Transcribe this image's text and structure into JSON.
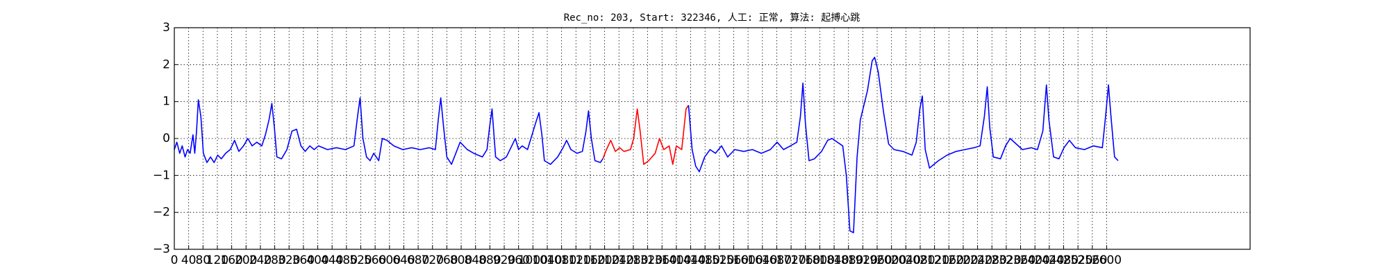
{
  "chart_data": {
    "type": "line",
    "title": "Rec_no: 203, Start: 322346, 人工: 正常, 算法: 起搏心跳",
    "xlim": [
      0,
      3000
    ],
    "ylim": [
      -3,
      3
    ],
    "xticks": [
      0,
      40,
      80,
      120,
      160,
      200,
      240,
      280,
      320,
      360,
      400,
      440,
      480,
      520,
      560,
      600,
      640,
      680,
      720,
      760,
      800,
      840,
      880,
      920,
      960,
      1000,
      1040,
      1080,
      1120,
      1160,
      1200,
      1240,
      1280,
      1320,
      1360,
      1400,
      1440,
      1480,
      1520,
      1560,
      1600,
      1640,
      1680,
      1720,
      1760,
      1800,
      1840,
      1880,
      1920,
      1960,
      2000,
      2040,
      2080,
      2120,
      2160,
      2200,
      2240,
      2280,
      2320,
      2360,
      2400,
      2440,
      2480,
      2520,
      2560,
      2600
    ],
    "yticks": [
      {
        "value": -3,
        "label": "−3"
      },
      {
        "value": -2,
        "label": "−2"
      },
      {
        "value": -1,
        "label": "−1"
      },
      0,
      1,
      2,
      3
    ],
    "grid": true,
    "series": [
      {
        "color": "#0000ff",
        "x": [
          0,
          7,
          15,
          22,
          30,
          37,
          44,
          52,
          57,
          62,
          67,
          74,
          81,
          91,
          101,
          111,
          121,
          131,
          143,
          156,
          168,
          180,
          193,
          205,
          217,
          230,
          244,
          254,
          264,
          272,
          279,
          286,
          299,
          314,
          328,
          341,
          353,
          365,
          378,
          390,
          402,
          427,
          452,
          477,
          501,
          511,
          518,
          526,
          536,
          546,
          556,
          570,
          580,
          593,
          612,
          637,
          662,
          686,
          711,
          728,
          736,
          743,
          751,
          760,
          773,
          785,
          797,
          817,
          835,
          859,
          872,
          879,
          886,
          896,
          909,
          926,
          941,
          951,
          960,
          970,
          985,
          1007,
          1017,
          1025,
          1032,
          1049,
          1069,
          1084,
          1094,
          1106,
          1123,
          1138,
          1148,
          1155,
          1163,
          1173,
          1188,
          1195
        ],
        "values": [
          -0.3,
          -0.1,
          -0.4,
          -0.2,
          -0.5,
          -0.3,
          -0.4,
          0.1,
          -0.4,
          0.2,
          1.05,
          0.6,
          -0.4,
          -0.65,
          -0.5,
          -0.65,
          -0.45,
          -0.55,
          -0.4,
          -0.3,
          -0.05,
          -0.35,
          -0.2,
          0.0,
          -0.2,
          -0.1,
          -0.2,
          0.1,
          0.5,
          0.95,
          0.3,
          -0.5,
          -0.55,
          -0.3,
          0.2,
          0.25,
          -0.2,
          -0.35,
          -0.2,
          -0.3,
          -0.2,
          -0.3,
          -0.25,
          -0.3,
          -0.2,
          0.6,
          1.1,
          0.0,
          -0.5,
          -0.6,
          -0.4,
          -0.6,
          0.0,
          -0.05,
          -0.2,
          -0.3,
          -0.25,
          -0.3,
          -0.25,
          -0.3,
          0.5,
          1.1,
          0.3,
          -0.5,
          -0.7,
          -0.4,
          -0.1,
          -0.3,
          -0.4,
          -0.5,
          -0.3,
          0.3,
          0.8,
          -0.5,
          -0.6,
          -0.5,
          -0.2,
          0.0,
          -0.3,
          -0.2,
          -0.3,
          0.4,
          0.7,
          0.1,
          -0.6,
          -0.7,
          -0.5,
          -0.25,
          -0.05,
          -0.3,
          -0.4,
          -0.35,
          0.2,
          0.75,
          0.0,
          -0.6,
          -0.65,
          -0.55
        ]
      },
      {
        "color": "#ff0000",
        "x": [
          1195,
          1205,
          1217,
          1230,
          1242,
          1254,
          1272,
          1281,
          1291,
          1299,
          1309,
          1323,
          1341,
          1353,
          1365,
          1380,
          1390,
          1400,
          1415,
          1427,
          1434
        ],
        "values": [
          -0.55,
          -0.3,
          -0.05,
          -0.35,
          -0.25,
          -0.35,
          -0.3,
          0.0,
          0.8,
          0.2,
          -0.7,
          -0.6,
          -0.4,
          0.0,
          -0.3,
          -0.2,
          -0.7,
          -0.2,
          -0.3,
          0.8,
          0.9
        ]
      },
      {
        "color": "#0000ff",
        "x": [
          1434,
          1444,
          1454,
          1464,
          1479,
          1494,
          1509,
          1526,
          1543,
          1563,
          1588,
          1612,
          1637,
          1662,
          1681,
          1699,
          1718,
          1736,
          1746,
          1753,
          1760,
          1770,
          1785,
          1805,
          1822,
          1834,
          1849,
          1864,
          1874,
          1884,
          1894,
          1904,
          1913,
          1933,
          1946,
          1953,
          1963,
          1978,
          1992,
          2007,
          2032,
          2057,
          2069,
          2079,
          2086,
          2094,
          2106,
          2131,
          2155,
          2180,
          2205,
          2230,
          2247,
          2259,
          2267,
          2274,
          2284,
          2304,
          2318,
          2331,
          2348,
          2365,
          2390,
          2407,
          2422,
          2432,
          2439,
          2452,
          2467,
          2481,
          2496,
          2513,
          2538,
          2563,
          2588,
          2597,
          2605,
          2612,
          2622,
          2632
        ],
        "values": [
          0.9,
          -0.3,
          -0.75,
          -0.9,
          -0.5,
          -0.3,
          -0.4,
          -0.2,
          -0.5,
          -0.3,
          -0.35,
          -0.3,
          -0.4,
          -0.3,
          -0.1,
          -0.3,
          -0.2,
          -0.1,
          0.6,
          1.5,
          0.4,
          -0.6,
          -0.55,
          -0.35,
          -0.05,
          0.0,
          -0.1,
          -0.2,
          -1.0,
          -2.5,
          -2.55,
          -0.5,
          0.5,
          1.3,
          2.1,
          2.2,
          1.8,
          0.7,
          -0.15,
          -0.3,
          -0.35,
          -0.45,
          -0.1,
          0.8,
          1.15,
          -0.3,
          -0.8,
          -0.6,
          -0.45,
          -0.35,
          -0.3,
          -0.25,
          -0.2,
          0.6,
          1.4,
          0.3,
          -0.5,
          -0.55,
          -0.2,
          0.0,
          -0.15,
          -0.3,
          -0.25,
          -0.3,
          0.2,
          1.45,
          0.5,
          -0.5,
          -0.55,
          -0.25,
          -0.05,
          -0.25,
          -0.3,
          -0.2,
          -0.25,
          0.6,
          1.45,
          0.6,
          -0.5,
          -0.6
        ]
      }
    ]
  }
}
